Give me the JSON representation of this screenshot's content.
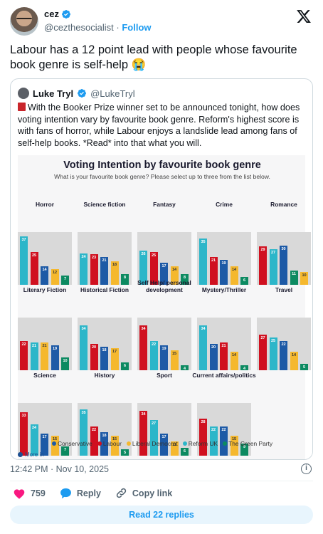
{
  "author": {
    "name": "cez",
    "handle": "@cezthesocialist",
    "separator": "·",
    "follow_label": "Follow"
  },
  "tweet_text": "Labour has a 12 point lead with people whose favourite book genre is self-help 😭",
  "quoted": {
    "name": "Luke Tryl",
    "handle": "@LukeTryl",
    "text": "With the Booker Prize winner set to be announced tonight, how does voting intention vary by favourite book genre. Reform's highest score is with fans of horror, while Labour enjoys a landslide lead among fans of self-help books. *Read* into that what you will."
  },
  "chart_data": {
    "type": "bar",
    "title": "Voting Intention by favourite book genre",
    "subtitle": "What is your favourite book genre? Please select up to three from the list below.",
    "series_names": [
      "Conservative",
      "Labour",
      "Liberal Democrat",
      "Reform UK",
      "The Green Party"
    ],
    "colors": {
      "Conservative": "#1d5aa6",
      "Labour": "#d0101f",
      "Liberal Democrat": "#f5b82e",
      "Reform UK": "#2cb6c9",
      "The Green Party": "#0c8a61"
    },
    "ylim": [
      0,
      40
    ],
    "panels": [
      {
        "genre": "Horror",
        "bars": [
          {
            "party": "Reform UK",
            "value": 37
          },
          {
            "party": "Labour",
            "value": 25
          },
          {
            "party": "Conservative",
            "value": 14
          },
          {
            "party": "Liberal Democrat",
            "value": 12
          },
          {
            "party": "The Green Party",
            "value": 7
          }
        ]
      },
      {
        "genre": "Science fiction",
        "bars": [
          {
            "party": "Reform UK",
            "value": 24
          },
          {
            "party": "Labour",
            "value": 23
          },
          {
            "party": "Conservative",
            "value": 21
          },
          {
            "party": "Liberal Democrat",
            "value": 18
          },
          {
            "party": "The Green Party",
            "value": 8
          }
        ]
      },
      {
        "genre": "Fantasy",
        "bars": [
          {
            "party": "Reform UK",
            "value": 26
          },
          {
            "party": "Labour",
            "value": 25
          },
          {
            "party": "Conservative",
            "value": 17
          },
          {
            "party": "Liberal Democrat",
            "value": 14
          },
          {
            "party": "The Green Party",
            "value": 8
          }
        ]
      },
      {
        "genre": "Crime",
        "bars": [
          {
            "party": "Reform UK",
            "value": 35
          },
          {
            "party": "Labour",
            "value": 21
          },
          {
            "party": "Conservative",
            "value": 19
          },
          {
            "party": "Liberal Democrat",
            "value": 14
          },
          {
            "party": "The Green Party",
            "value": 6
          }
        ]
      },
      {
        "genre": "Romance",
        "bars": [
          {
            "party": "Labour",
            "value": 29
          },
          {
            "party": "Reform UK",
            "value": 27
          },
          {
            "party": "Conservative",
            "value": 30
          },
          {
            "party": "The Green Party",
            "value": 11
          },
          {
            "party": "Liberal Democrat",
            "value": 10
          }
        ]
      },
      {
        "genre": "Literary Fiction",
        "bars": [
          {
            "party": "Labour",
            "value": 22
          },
          {
            "party": "Reform UK",
            "value": 21
          },
          {
            "party": "Liberal Democrat",
            "value": 21
          },
          {
            "party": "Conservative",
            "value": 19
          },
          {
            "party": "The Green Party",
            "value": 10
          }
        ]
      },
      {
        "genre": "Historical Fiction",
        "bars": [
          {
            "party": "Reform UK",
            "value": 34
          },
          {
            "party": "Labour",
            "value": 20
          },
          {
            "party": "Conservative",
            "value": 18
          },
          {
            "party": "Liberal Democrat",
            "value": 17
          },
          {
            "party": "The Green Party",
            "value": 6
          }
        ]
      },
      {
        "genre": "Self Help/ personal development",
        "bars": [
          {
            "party": "Labour",
            "value": 34
          },
          {
            "party": "Reform UK",
            "value": 22
          },
          {
            "party": "Conservative",
            "value": 19
          },
          {
            "party": "Liberal Democrat",
            "value": 15
          },
          {
            "party": "The Green Party",
            "value": 4
          }
        ]
      },
      {
        "genre": "Mystery/Thriller",
        "bars": [
          {
            "party": "Reform UK",
            "value": 34
          },
          {
            "party": "Conservative",
            "value": 20
          },
          {
            "party": "Labour",
            "value": 21
          },
          {
            "party": "Liberal Democrat",
            "value": 14
          },
          {
            "party": "The Green Party",
            "value": 4
          }
        ]
      },
      {
        "genre": "Travel",
        "bars": [
          {
            "party": "Labour",
            "value": 27
          },
          {
            "party": "Reform UK",
            "value": 25
          },
          {
            "party": "Conservative",
            "value": 22
          },
          {
            "party": "Liberal Democrat",
            "value": 14
          },
          {
            "party": "The Green Party",
            "value": 5
          }
        ]
      },
      {
        "genre": "Science",
        "bars": [
          {
            "party": "Labour",
            "value": 33
          },
          {
            "party": "Reform UK",
            "value": 24
          },
          {
            "party": "Conservative",
            "value": 17
          },
          {
            "party": "Liberal Democrat",
            "value": 15
          },
          {
            "party": "The Green Party",
            "value": 7
          }
        ]
      },
      {
        "genre": "History",
        "bars": [
          {
            "party": "Reform UK",
            "value": 35
          },
          {
            "party": "Labour",
            "value": 22
          },
          {
            "party": "Conservative",
            "value": 18
          },
          {
            "party": "Liberal Democrat",
            "value": 15
          },
          {
            "party": "The Green Party",
            "value": 5
          }
        ]
      },
      {
        "genre": "Sport",
        "bars": [
          {
            "party": "Labour",
            "value": 34
          },
          {
            "party": "Reform UK",
            "value": 27
          },
          {
            "party": "Conservative",
            "value": 17
          },
          {
            "party": "Liberal Democrat",
            "value": 11
          },
          {
            "party": "The Green Party",
            "value": 6
          }
        ]
      },
      {
        "genre": "Current affairs/politics",
        "bars": [
          {
            "party": "Labour",
            "value": 28
          },
          {
            "party": "Reform UK",
            "value": 22
          },
          {
            "party": "Conservative",
            "value": 22
          },
          {
            "party": "Liberal Democrat",
            "value": 15
          },
          {
            "party": "The Green Party",
            "value": 9
          }
        ]
      }
    ]
  },
  "more_label": "More in",
  "timestamp": "12:42 PM · Nov 10, 2025",
  "actions": {
    "like_count": "759",
    "reply_label": "Reply",
    "copy_link_label": "Copy link"
  },
  "read_replies_label": "Read 22 replies"
}
